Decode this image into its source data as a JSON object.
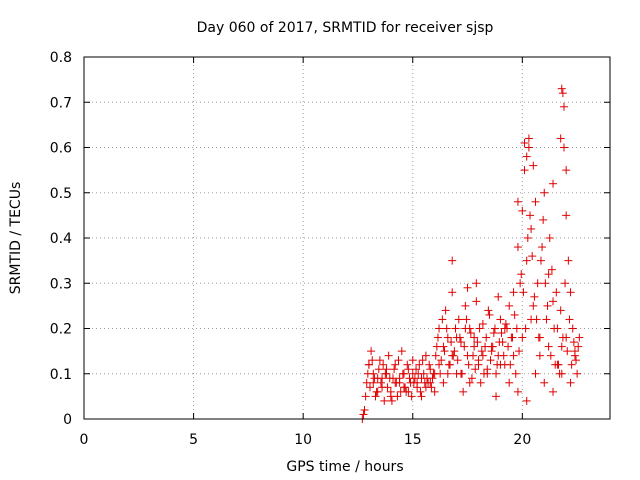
{
  "chart_data": {
    "type": "scatter",
    "title": "Day 060 of 2017, SRMTID for receiver sjsp",
    "xlabel": "GPS time / hours",
    "ylabel": "SRMTID / TECUs",
    "xlim": [
      0,
      24
    ],
    "ylim": [
      0,
      0.8
    ],
    "xticks": [
      0,
      5,
      10,
      15,
      20
    ],
    "xtick_labels": [
      "0",
      "5",
      "10",
      "15",
      "20"
    ],
    "yticks": [
      0,
      0.1,
      0.2,
      0.3,
      0.4,
      0.5,
      0.6,
      0.7,
      0.8
    ],
    "ytick_labels": [
      "0",
      "0.1",
      "0.2",
      "0.3",
      "0.4",
      "0.5",
      "0.6",
      "0.7",
      "0.8"
    ],
    "grid": true,
    "marker": "+",
    "color": "#e00000",
    "series": [
      {
        "name": "SRMTID",
        "x": [
          12.7,
          12.8,
          12.9,
          13.0,
          13.1,
          13.2,
          13.3,
          13.4,
          13.5,
          13.6,
          13.7,
          13.8,
          13.9,
          14.0,
          14.1,
          14.2,
          14.3,
          14.4,
          14.5,
          14.6,
          14.7,
          14.8,
          14.9,
          15.0,
          15.1,
          15.2,
          15.3,
          15.4,
          15.5,
          15.6,
          15.7,
          15.8,
          15.9,
          16.0,
          16.1,
          16.2,
          16.3,
          16.4,
          16.5,
          16.6,
          16.7,
          16.8,
          16.9,
          17.0,
          17.1,
          17.2,
          17.3,
          17.4,
          17.5,
          17.6,
          17.7,
          17.8,
          17.9,
          18.0,
          18.1,
          18.2,
          18.3,
          18.4,
          18.5,
          18.6,
          18.7,
          18.8,
          18.9,
          19.0,
          19.1,
          19.2,
          19.3,
          19.4,
          19.5,
          19.6,
          19.7,
          19.8,
          19.9,
          20.0,
          20.1,
          20.2,
          20.3,
          20.4,
          20.5,
          20.6,
          20.7,
          20.8,
          20.9,
          21.0,
          21.1,
          21.2,
          21.3,
          21.4,
          21.5,
          21.6,
          21.7,
          21.8,
          21.9,
          22.0,
          22.1,
          22.2,
          22.3,
          22.4,
          22.5,
          22.6,
          12.75,
          12.85,
          12.95,
          13.05,
          13.15,
          13.25,
          13.35,
          13.45,
          13.55,
          13.65,
          13.75,
          13.85,
          13.95,
          14.05,
          14.15,
          14.25,
          14.35,
          14.45,
          14.55,
          14.65,
          14.75,
          14.85,
          14.95,
          15.05,
          15.15,
          15.25,
          15.35,
          15.45,
          15.55,
          15.65,
          15.75,
          15.85,
          15.95,
          16.05,
          16.15,
          16.25,
          16.35,
          16.45,
          16.55,
          16.65,
          16.75,
          16.85,
          16.95,
          17.05,
          17.15,
          17.25,
          17.35,
          17.45,
          17.55,
          17.65,
          17.75,
          17.85,
          17.95,
          18.05,
          18.15,
          18.25,
          18.35,
          18.45,
          18.55,
          18.65,
          18.75,
          18.85,
          18.95,
          19.05,
          19.15,
          19.25,
          19.35,
          19.45,
          19.55,
          19.65,
          19.75,
          19.85,
          19.95,
          20.05,
          20.15,
          20.25,
          20.35,
          20.45,
          20.55,
          20.65,
          20.75,
          20.85,
          20.95,
          21.05,
          21.15,
          21.25,
          21.35,
          21.45,
          21.55,
          21.65,
          21.75,
          21.85,
          21.95,
          22.05,
          22.15,
          22.25,
          22.35,
          22.45,
          22.55,
          13.0,
          13.2,
          13.4,
          13.6,
          13.8,
          14.0,
          14.2,
          14.4,
          14.6,
          14.8,
          15.0,
          15.2,
          15.4,
          15.6,
          15.8,
          16.0,
          16.2,
          16.4,
          16.6,
          16.8,
          17.0,
          17.2,
          17.4,
          17.6,
          17.8,
          18.0,
          18.2,
          18.4,
          18.6,
          18.8,
          19.0,
          19.2,
          19.4,
          19.6,
          19.8,
          20.0,
          20.2,
          20.4,
          20.6,
          20.8,
          21.0,
          21.2,
          21.4,
          21.6,
          21.8,
          22.0,
          22.2,
          22.4,
          21.8,
          21.85,
          21.9,
          21.75,
          20.1,
          20.2,
          20.3,
          16.8,
          17.9,
          18.9,
          20.5,
          21.4,
          22.0,
          19.8,
          17.5
        ],
        "y": [
          0.0,
          0.02,
          0.08,
          0.12,
          0.15,
          0.1,
          0.05,
          0.09,
          0.13,
          0.07,
          0.04,
          0.11,
          0.14,
          0.06,
          0.09,
          0.12,
          0.05,
          0.08,
          0.15,
          0.1,
          0.06,
          0.11,
          0.08,
          0.13,
          0.09,
          0.07,
          0.12,
          0.05,
          0.1,
          0.14,
          0.08,
          0.11,
          0.09,
          0.06,
          0.16,
          0.2,
          0.13,
          0.08,
          0.24,
          0.18,
          0.12,
          0.28,
          0.15,
          0.1,
          0.22,
          0.17,
          0.06,
          0.25,
          0.14,
          0.2,
          0.09,
          0.18,
          0.26,
          0.13,
          0.08,
          0.21,
          0.16,
          0.11,
          0.23,
          0.15,
          0.19,
          0.1,
          0.14,
          0.22,
          0.17,
          0.12,
          0.2,
          0.25,
          0.18,
          0.28,
          0.1,
          0.38,
          0.3,
          0.46,
          0.55,
          0.35,
          0.6,
          0.42,
          0.25,
          0.48,
          0.3,
          0.18,
          0.38,
          0.5,
          0.22,
          0.32,
          0.14,
          0.26,
          0.12,
          0.2,
          0.1,
          0.16,
          0.6,
          0.45,
          0.35,
          0.28,
          0.2,
          0.15,
          0.1,
          0.18,
          0.01,
          0.05,
          0.1,
          0.07,
          0.13,
          0.09,
          0.06,
          0.11,
          0.08,
          0.12,
          0.1,
          0.07,
          0.09,
          0.04,
          0.11,
          0.08,
          0.13,
          0.06,
          0.1,
          0.07,
          0.12,
          0.09,
          0.05,
          0.08,
          0.11,
          0.1,
          0.06,
          0.13,
          0.08,
          0.09,
          0.12,
          0.07,
          0.1,
          0.14,
          0.18,
          0.1,
          0.22,
          0.15,
          0.2,
          0.12,
          0.17,
          0.14,
          0.2,
          0.13,
          0.18,
          0.1,
          0.16,
          0.22,
          0.12,
          0.19,
          0.14,
          0.11,
          0.17,
          0.2,
          0.15,
          0.1,
          0.18,
          0.24,
          0.13,
          0.16,
          0.2,
          0.12,
          0.17,
          0.19,
          0.14,
          0.21,
          0.16,
          0.12,
          0.18,
          0.23,
          0.2,
          0.15,
          0.32,
          0.28,
          0.2,
          0.4,
          0.45,
          0.36,
          0.27,
          0.22,
          0.18,
          0.35,
          0.44,
          0.3,
          0.25,
          0.4,
          0.33,
          0.2,
          0.28,
          0.12,
          0.24,
          0.18,
          0.3,
          0.15,
          0.22,
          0.12,
          0.17,
          0.13,
          0.16,
          0.12,
          0.08,
          0.06,
          0.09,
          0.1,
          0.05,
          0.08,
          0.09,
          0.07,
          0.06,
          0.1,
          0.08,
          0.09,
          0.07,
          0.08,
          0.1,
          0.12,
          0.16,
          0.1,
          0.14,
          0.18,
          0.1,
          0.2,
          0.08,
          0.16,
          0.12,
          0.14,
          0.1,
          0.16,
          0.05,
          0.12,
          0.2,
          0.08,
          0.14,
          0.06,
          0.18,
          0.04,
          0.22,
          0.1,
          0.14,
          0.08,
          0.16,
          0.06,
          0.12,
          0.1,
          0.18,
          0.08,
          0.14,
          0.73,
          0.72,
          0.69,
          0.62,
          0.61,
          0.58,
          0.62,
          0.35,
          0.3,
          0.27,
          0.56,
          0.52,
          0.55,
          0.48,
          0.29
        ]
      }
    ]
  }
}
